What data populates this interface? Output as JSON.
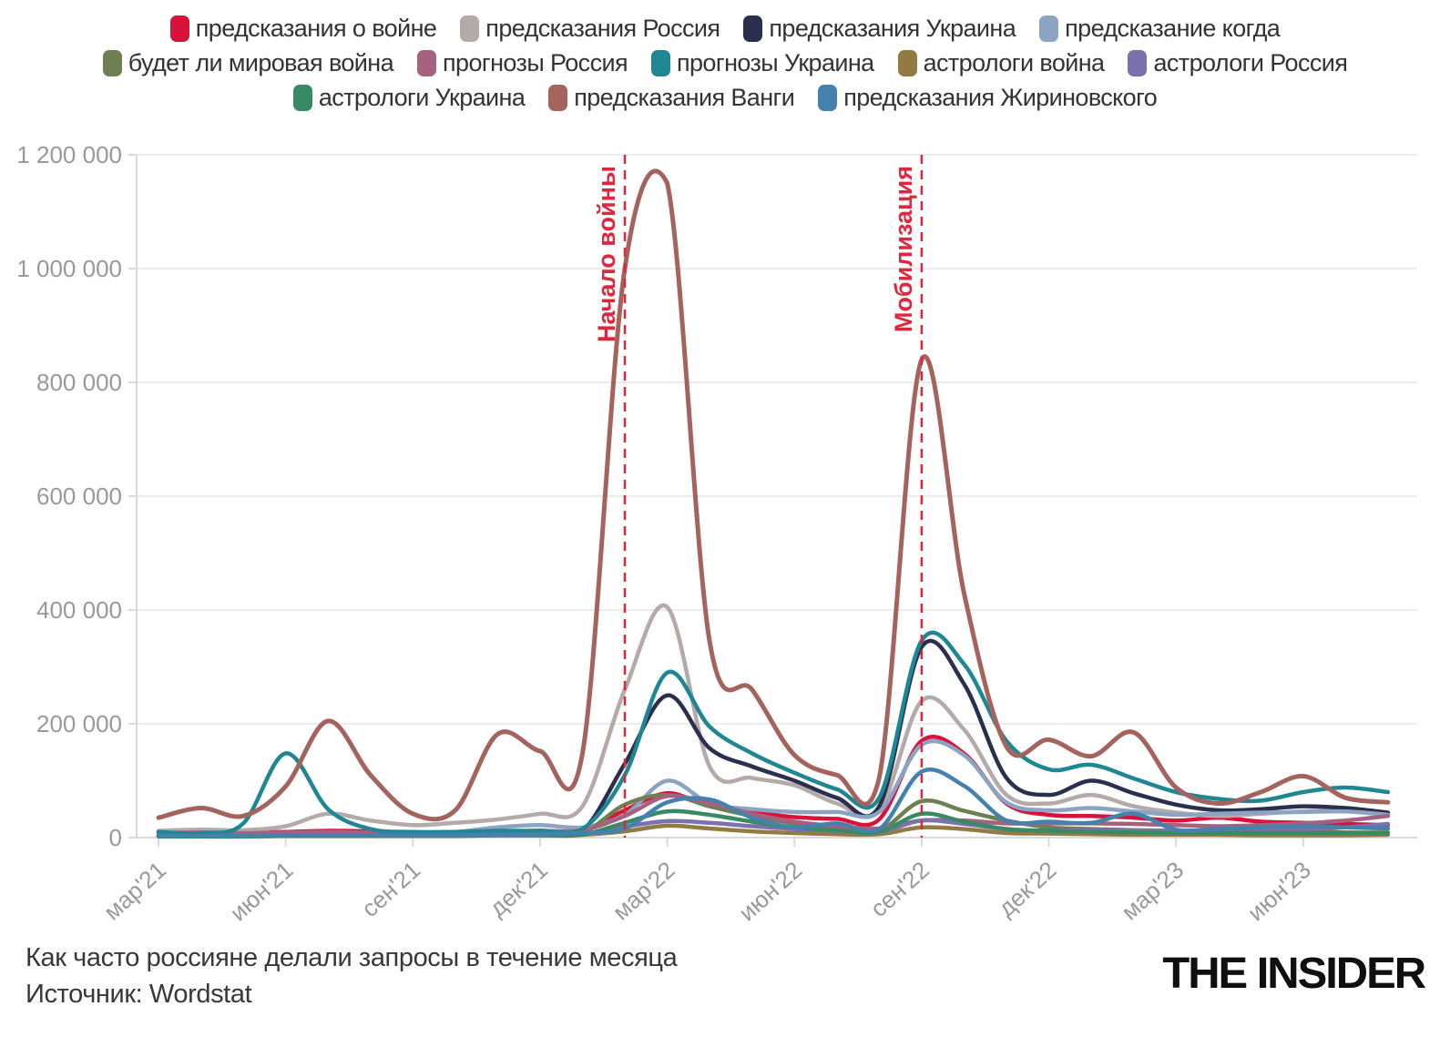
{
  "footer": {
    "title": "Как часто россияне делали запросы в течение месяца",
    "source": "Источник: Wordstat",
    "logo": "THE INSIDER"
  },
  "legend": {
    "rows": [
      [
        0,
        1,
        2,
        3
      ],
      [
        4,
        5,
        6,
        7,
        8
      ],
      [
        9,
        10,
        11
      ]
    ]
  },
  "axes": {
    "y_tick_values": [
      0,
      200000,
      400000,
      600000,
      800000,
      1000000,
      1200000
    ],
    "x_tick_labels": [
      "мар'21",
      "июн'21",
      "сен'21",
      "дек'21",
      "мар'22",
      "июн'22",
      "сен'22",
      "дек'22",
      "мар'23",
      "июн'23"
    ],
    "x_tick_indices": [
      0,
      3,
      6,
      9,
      12,
      15,
      18,
      21,
      24,
      27
    ]
  },
  "annotations": {
    "color": "#e0263c",
    "items": [
      {
        "label": "Начало войны",
        "month_index": 11
      },
      {
        "label": "Мобилизация",
        "month_index": 18
      }
    ]
  },
  "chart_data": {
    "type": "line",
    "title": "Как часто россияне делали запросы в течение месяца",
    "xlabel": "",
    "ylabel": "",
    "ylim": [
      0,
      1200000
    ],
    "grid": true,
    "legend_position": "top",
    "x": [
      "мар'21",
      "апр'21",
      "май'21",
      "июн'21",
      "июл'21",
      "авг'21",
      "сен'21",
      "окт'21",
      "ноя'21",
      "дек'21",
      "янв'22",
      "фев'22",
      "мар'22",
      "апр'22",
      "май'22",
      "июн'22",
      "июл'22",
      "авг'22",
      "сен'22",
      "окт'22",
      "ноя'22",
      "дек'22",
      "янв'23",
      "фев'23",
      "мар'23",
      "апр'23",
      "май'23",
      "июн'23",
      "июл'23",
      "авг'23"
    ],
    "series": [
      {
        "name": "предсказания о войне",
        "color": "#d8123a",
        "values": [
          10000,
          10000,
          9000,
          10000,
          12000,
          11000,
          9000,
          10000,
          11000,
          12000,
          13000,
          48000,
          78000,
          55000,
          45000,
          36000,
          33000,
          32000,
          170000,
          148000,
          60000,
          40000,
          38000,
          35000,
          30000,
          35000,
          28000,
          26000,
          24000,
          22000
        ]
      },
      {
        "name": "предсказания Россия",
        "color": "#b3aaa9",
        "values": [
          12000,
          14000,
          13000,
          20000,
          42000,
          30000,
          22000,
          26000,
          32000,
          42000,
          55000,
          260000,
          405000,
          125000,
          105000,
          92000,
          60000,
          48000,
          240000,
          190000,
          75000,
          60000,
          75000,
          55000,
          44000,
          38000,
          42000,
          46000,
          48000,
          40000
        ]
      },
      {
        "name": "предсказания Украина",
        "color": "#2a2f4e",
        "values": [
          4000,
          4000,
          4000,
          5000,
          6000,
          5000,
          5000,
          5000,
          6000,
          8000,
          12000,
          130000,
          250000,
          157000,
          125000,
          100000,
          70000,
          55000,
          335000,
          270000,
          105000,
          75000,
          100000,
          78000,
          58000,
          48000,
          50000,
          55000,
          52000,
          44000
        ]
      },
      {
        "name": "предсказание когда",
        "color": "#8ca4c4",
        "values": [
          6000,
          6000,
          6000,
          7000,
          8000,
          8000,
          8000,
          10000,
          18000,
          22000,
          18000,
          40000,
          100000,
          60000,
          50000,
          45000,
          45000,
          45000,
          163000,
          145000,
          62000,
          48000,
          52000,
          46000,
          40000,
          42000,
          44000,
          45000,
          46000,
          40000
        ]
      },
      {
        "name": "будет ли мировая война",
        "color": "#6c8051",
        "values": [
          3000,
          3000,
          3000,
          4000,
          4000,
          4000,
          4000,
          4000,
          5000,
          6000,
          8000,
          58000,
          75000,
          55000,
          38000,
          25000,
          15000,
          12000,
          64000,
          47000,
          30000,
          18000,
          15000,
          13000,
          12000,
          11000,
          10000,
          10000,
          9000,
          9000
        ]
      },
      {
        "name": "прогнозы Россия",
        "color": "#a5627f",
        "values": [
          8000,
          9000,
          8000,
          9000,
          10000,
          9000,
          9000,
          10000,
          11000,
          12000,
          13000,
          38000,
          73000,
          60000,
          42000,
          28000,
          20000,
          16000,
          30000,
          30000,
          25000,
          25000,
          25000,
          24000,
          22000,
          20000,
          22000,
          25000,
          30000,
          38000
        ]
      },
      {
        "name": "прогнозы Украина",
        "color": "#1f8794",
        "values": [
          10000,
          8000,
          25000,
          148000,
          50000,
          15000,
          10000,
          10000,
          12000,
          12000,
          15000,
          110000,
          290000,
          195000,
          148000,
          114000,
          85000,
          70000,
          346000,
          305000,
          170000,
          120000,
          128000,
          104000,
          80000,
          68000,
          65000,
          80000,
          88000,
          80000
        ]
      },
      {
        "name": "астрологи война",
        "color": "#927a42",
        "values": [
          2000,
          2000,
          2000,
          3000,
          3000,
          3000,
          3000,
          3000,
          4000,
          4000,
          5000,
          11000,
          21000,
          16000,
          11000,
          8000,
          6000,
          6000,
          18000,
          15000,
          8000,
          7000,
          6000,
          5000,
          5000,
          5000,
          4000,
          4000,
          4000,
          5000
        ]
      },
      {
        "name": "астрологи Россия",
        "color": "#7b72ad",
        "values": [
          3000,
          3000,
          3000,
          4000,
          4000,
          4000,
          4000,
          4000,
          5000,
          5000,
          6000,
          19000,
          29000,
          26000,
          20000,
          15000,
          12000,
          10000,
          30000,
          24000,
          15000,
          12000,
          13000,
          12000,
          12000,
          13000,
          13000,
          14000,
          18000,
          24000
        ]
      },
      {
        "name": "астрологи Украина",
        "color": "#388a65",
        "values": [
          2000,
          2000,
          2000,
          3000,
          3000,
          3000,
          3000,
          3000,
          4000,
          4000,
          5000,
          26000,
          46000,
          40000,
          28000,
          18000,
          13000,
          10000,
          42000,
          28000,
          15000,
          12000,
          10000,
          9000,
          8000,
          8000,
          8000,
          8000,
          8000,
          8000
        ]
      },
      {
        "name": "предсказания Ванги",
        "color": "#a5635d",
        "values": [
          35000,
          52000,
          38000,
          90000,
          205000,
          110000,
          42000,
          48000,
          182000,
          152000,
          148000,
          1000000,
          1150000,
          345000,
          260000,
          145000,
          110000,
          105000,
          840000,
          430000,
          160000,
          172000,
          143000,
          185000,
          88000,
          60000,
          80000,
          108000,
          70000,
          62000
        ]
      },
      {
        "name": "предсказания Жириновского",
        "color": "#4581ad",
        "values": [
          3000,
          3000,
          3000,
          4000,
          4000,
          4000,
          4000,
          4000,
          5000,
          6000,
          8000,
          16000,
          62000,
          67000,
          35000,
          18000,
          25000,
          15000,
          116000,
          91000,
          30000,
          28000,
          26000,
          42000,
          14000,
          15000,
          18000,
          20000,
          18000,
          16000
        ]
      }
    ]
  }
}
